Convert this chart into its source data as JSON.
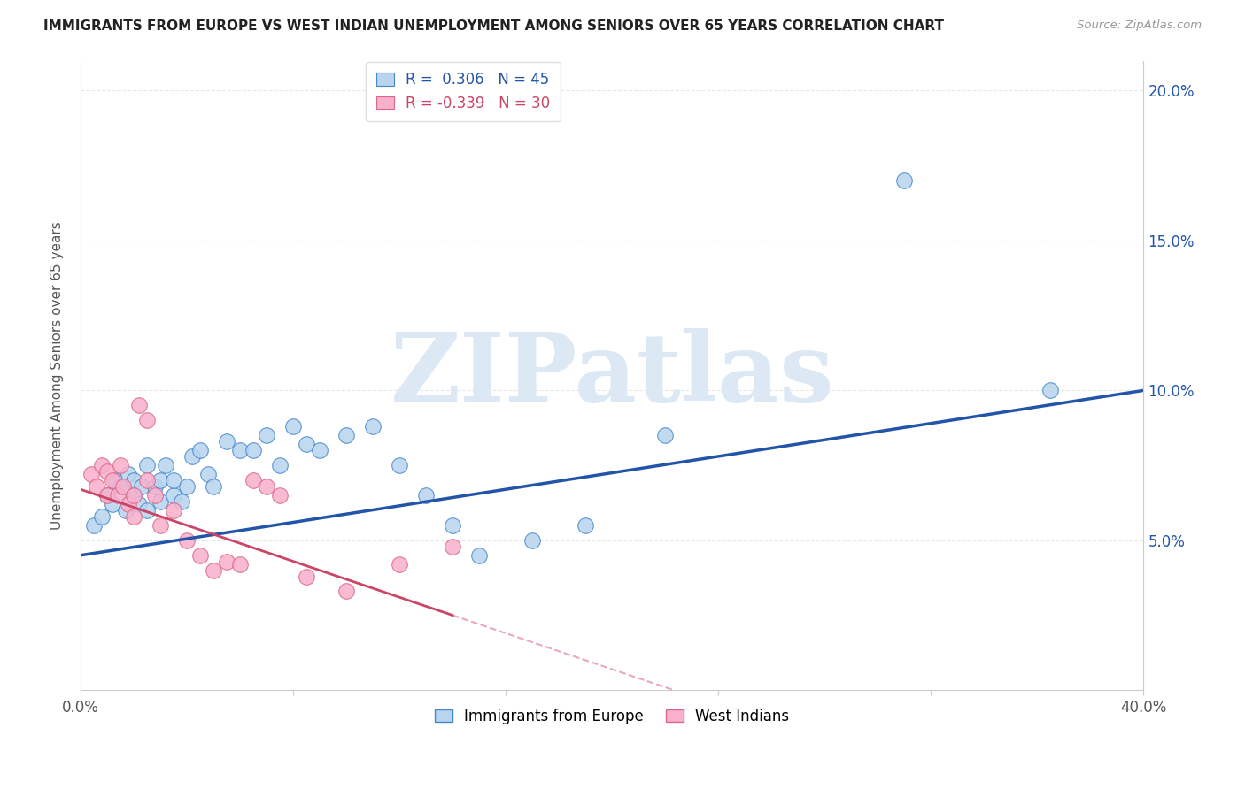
{
  "title": "IMMIGRANTS FROM EUROPE VS WEST INDIAN UNEMPLOYMENT AMONG SENIORS OVER 65 YEARS CORRELATION CHART",
  "source": "Source: ZipAtlas.com",
  "ylabel": "Unemployment Among Seniors over 65 years",
  "xlim": [
    0,
    0.4
  ],
  "ylim": [
    0,
    0.21
  ],
  "yticks": [
    0.05,
    0.1,
    0.15,
    0.2
  ],
  "ytick_labels": [
    "5.0%",
    "10.0%",
    "15.0%",
    "20.0%"
  ],
  "blue_R": "0.306",
  "blue_N": "45",
  "pink_R": "-0.339",
  "pink_N": "30",
  "blue_scatter_x": [
    0.005,
    0.008,
    0.01,
    0.012,
    0.013,
    0.015,
    0.017,
    0.018,
    0.02,
    0.02,
    0.022,
    0.023,
    0.025,
    0.025,
    0.028,
    0.03,
    0.03,
    0.032,
    0.035,
    0.035,
    0.038,
    0.04,
    0.042,
    0.045,
    0.048,
    0.05,
    0.055,
    0.06,
    0.065,
    0.07,
    0.075,
    0.08,
    0.085,
    0.09,
    0.1,
    0.11,
    0.12,
    0.13,
    0.14,
    0.15,
    0.17,
    0.19,
    0.22,
    0.31,
    0.365
  ],
  "blue_scatter_y": [
    0.055,
    0.058,
    0.065,
    0.062,
    0.07,
    0.068,
    0.06,
    0.072,
    0.065,
    0.07,
    0.062,
    0.068,
    0.06,
    0.075,
    0.068,
    0.063,
    0.07,
    0.075,
    0.065,
    0.07,
    0.063,
    0.068,
    0.078,
    0.08,
    0.072,
    0.068,
    0.083,
    0.08,
    0.08,
    0.085,
    0.075,
    0.088,
    0.082,
    0.08,
    0.085,
    0.088,
    0.075,
    0.065,
    0.055,
    0.045,
    0.05,
    0.055,
    0.085,
    0.17,
    0.1
  ],
  "pink_scatter_x": [
    0.004,
    0.006,
    0.008,
    0.01,
    0.01,
    0.012,
    0.014,
    0.015,
    0.016,
    0.018,
    0.02,
    0.02,
    0.022,
    0.025,
    0.025,
    0.028,
    0.03,
    0.035,
    0.04,
    0.045,
    0.05,
    0.055,
    0.06,
    0.065,
    0.07,
    0.075,
    0.085,
    0.1,
    0.12,
    0.14
  ],
  "pink_scatter_y": [
    0.072,
    0.068,
    0.075,
    0.065,
    0.073,
    0.07,
    0.065,
    0.075,
    0.068,
    0.062,
    0.058,
    0.065,
    0.095,
    0.09,
    0.07,
    0.065,
    0.055,
    0.06,
    0.05,
    0.045,
    0.04,
    0.043,
    0.042,
    0.07,
    0.068,
    0.065,
    0.038,
    0.033,
    0.042,
    0.048
  ],
  "blue_color": "#b8d4ee",
  "pink_color": "#f8b0cc",
  "blue_edge_color": "#4488cc",
  "pink_edge_color": "#dd6688",
  "blue_line_color": "#2255aa",
  "pink_line_color": "#cc4466",
  "watermark_color": "#dce8f4",
  "background_color": "#ffffff",
  "grid_color": "#e8e8e8"
}
